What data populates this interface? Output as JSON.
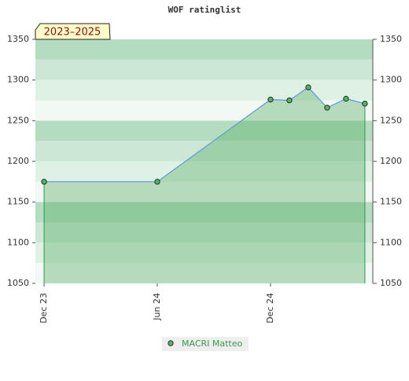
{
  "chart_data": {
    "type": "area",
    "title": "WOF ratinglist",
    "annotation": "2023–2025",
    "x": [
      0,
      6,
      12,
      13,
      14,
      15,
      16,
      17
    ],
    "xlim": [
      -0.46,
      17.42
    ],
    "xticks": [
      {
        "value": 0,
        "label": "Dec 23"
      },
      {
        "value": 6,
        "label": "Jun 24"
      },
      {
        "value": 12,
        "label": "Dec 24"
      }
    ],
    "ylim": [
      1050,
      1350
    ],
    "yticks": [
      1050,
      1100,
      1150,
      1200,
      1250,
      1300,
      1350
    ],
    "series": [
      {
        "name": "MACRI Matteo",
        "color": "#5aae6a",
        "line_color": "#5b9bd5",
        "values": [
          1175,
          1175,
          1276,
          1275,
          1291,
          1266,
          1277,
          1271
        ]
      }
    ],
    "right_axis": true
  }
}
